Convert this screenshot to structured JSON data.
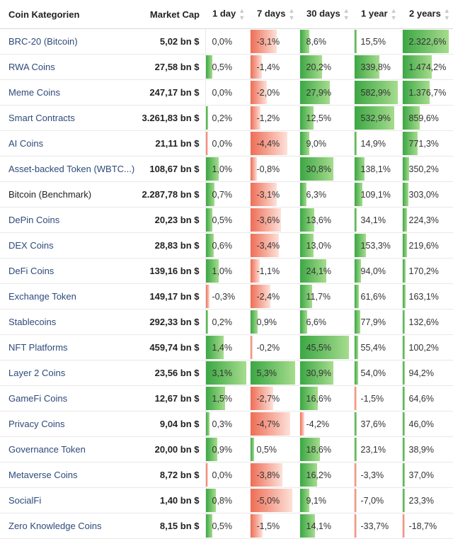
{
  "headers": {
    "category": "Coin Kategorien",
    "market_cap": "Market Cap",
    "d1": "1 day",
    "d7": "7 days",
    "d30": "30 days",
    "y1": "1 year",
    "y2": "2 years"
  },
  "sort_icon": "sort-updown-icon",
  "colors": {
    "positive": "#3ba743",
    "negative": "#ee6d55",
    "link": "#2e4a7a"
  },
  "rows": [
    {
      "name": "BRC-20 (Bitcoin)",
      "cap": "5,02 bn $",
      "d1": "0,0%",
      "d7": "-3,1%",
      "d30": "8,6%",
      "y1": "15,5%",
      "y2": "2.322,6%",
      "n": [
        0,
        -3.1,
        8.6,
        15.5,
        2322.6
      ]
    },
    {
      "name": "RWA Coins",
      "cap": "27,58 bn $",
      "d1": "0,5%",
      "d7": "-1,4%",
      "d30": "20,2%",
      "y1": "339,8%",
      "y2": "1.474,2%",
      "n": [
        0.5,
        -1.4,
        20.2,
        339.8,
        1474.2
      ]
    },
    {
      "name": "Meme Coins",
      "cap": "247,17 bn $",
      "d1": "0,0%",
      "d7": "-2,0%",
      "d30": "27,9%",
      "y1": "582,9%",
      "y2": "1.376,7%",
      "n": [
        0,
        -2.0,
        27.9,
        582.9,
        1376.7
      ]
    },
    {
      "name": "Smart Contracts",
      "cap": "3.261,83 bn $",
      "d1": "0,2%",
      "d7": "-1,2%",
      "d30": "12,5%",
      "y1": "532,9%",
      "y2": "859,6%",
      "n": [
        0.2,
        -1.2,
        12.5,
        532.9,
        859.6
      ]
    },
    {
      "name": "AI Coins",
      "cap": "21,11 bn $",
      "d1": "0,0%",
      "d7": "-4,4%",
      "d30": "9,0%",
      "y1": "14,9%",
      "y2": "771,3%",
      "n": [
        -0.05,
        -4.4,
        9.0,
        14.9,
        771.3
      ]
    },
    {
      "name": "Asset-backed Token (WBTC...)",
      "cap": "108,67 bn $",
      "d1": "1,0%",
      "d7": "-0,8%",
      "d30": "30,8%",
      "y1": "138,1%",
      "y2": "350,2%",
      "n": [
        1.0,
        -0.8,
        30.8,
        138.1,
        350.2
      ]
    },
    {
      "name": "Bitcoin (Benchmark)",
      "cap": "2.287,78 bn $",
      "d1": "0,7%",
      "d7": "-3,1%",
      "d30": "6,3%",
      "y1": "109,1%",
      "y2": "303,0%",
      "n": [
        0.7,
        -3.1,
        6.3,
        109.1,
        303.0
      ],
      "plain": true
    },
    {
      "name": "DePin Coins",
      "cap": "20,23 bn $",
      "d1": "0,5%",
      "d7": "-3,6%",
      "d30": "13,6%",
      "y1": "34,1%",
      "y2": "224,3%",
      "n": [
        0.5,
        -3.6,
        13.6,
        34.1,
        224.3
      ]
    },
    {
      "name": "DEX Coins",
      "cap": "28,83 bn $",
      "d1": "0,6%",
      "d7": "-3,4%",
      "d30": "13,0%",
      "y1": "153,3%",
      "y2": "219,6%",
      "n": [
        0.6,
        -3.4,
        13.0,
        153.3,
        219.6
      ]
    },
    {
      "name": "DeFi Coins",
      "cap": "139,16 bn $",
      "d1": "1,0%",
      "d7": "-1,1%",
      "d30": "24,1%",
      "y1": "94,0%",
      "y2": "170,2%",
      "n": [
        1.0,
        -1.1,
        24.1,
        94.0,
        170.2
      ]
    },
    {
      "name": "Exchange Token",
      "cap": "149,17 bn $",
      "d1": "-0,3%",
      "d7": "-2,4%",
      "d30": "11,7%",
      "y1": "61,6%",
      "y2": "163,1%",
      "n": [
        -0.3,
        -2.4,
        11.7,
        61.6,
        163.1
      ]
    },
    {
      "name": "Stablecoins",
      "cap": "292,33 bn $",
      "d1": "0,2%",
      "d7": "0,9%",
      "d30": "6,6%",
      "y1": "77,9%",
      "y2": "132,6%",
      "n": [
        0.2,
        0.9,
        6.6,
        77.9,
        132.6
      ]
    },
    {
      "name": "NFT Platforms",
      "cap": "459,74 bn $",
      "d1": "1,4%",
      "d7": "-0,2%",
      "d30": "45,5%",
      "y1": "55,4%",
      "y2": "100,2%",
      "n": [
        1.4,
        -0.2,
        45.5,
        55.4,
        100.2
      ]
    },
    {
      "name": "Layer 2 Coins",
      "cap": "23,56 bn $",
      "d1": "3,1%",
      "d7": "5,3%",
      "d30": "30,9%",
      "y1": "54,0%",
      "y2": "94,2%",
      "n": [
        3.1,
        5.3,
        30.9,
        54.0,
        94.2
      ]
    },
    {
      "name": "GameFi Coins",
      "cap": "12,67 bn $",
      "d1": "1,5%",
      "d7": "-2,7%",
      "d30": "16,6%",
      "y1": "-1,5%",
      "y2": "64,6%",
      "n": [
        1.5,
        -2.7,
        16.6,
        -1.5,
        64.6
      ]
    },
    {
      "name": "Privacy Coins",
      "cap": "9,04 bn $",
      "d1": "0,3%",
      "d7": "-4,7%",
      "d30": "-4,2%",
      "y1": "37,6%",
      "y2": "46,0%",
      "n": [
        0.3,
        -4.7,
        -4.2,
        37.6,
        46.0
      ]
    },
    {
      "name": "Governance Token",
      "cap": "20,00 bn $",
      "d1": "0,9%",
      "d7": "0,5%",
      "d30": "18,6%",
      "y1": "23,1%",
      "y2": "38,9%",
      "n": [
        0.9,
        0.5,
        18.6,
        23.1,
        38.9
      ]
    },
    {
      "name": "Metaverse Coins",
      "cap": "8,72 bn $",
      "d1": "0,0%",
      "d7": "-3,8%",
      "d30": "16,2%",
      "y1": "-3,3%",
      "y2": "37,0%",
      "n": [
        -0.05,
        -3.8,
        16.2,
        -3.3,
        37.0
      ]
    },
    {
      "name": "SocialFi",
      "cap": "1,40 bn $",
      "d1": "0,8%",
      "d7": "-5,0%",
      "d30": "9,1%",
      "y1": "-7,0%",
      "y2": "23,3%",
      "n": [
        0.8,
        -5.0,
        9.1,
        -7.0,
        23.3
      ]
    },
    {
      "name": "Zero Knowledge Coins",
      "cap": "8,15 bn $",
      "d1": "0,5%",
      "d7": "-1,5%",
      "d30": "14,1%",
      "y1": "-33,7%",
      "y2": "-18,7%",
      "n": [
        0.5,
        -1.5,
        14.1,
        -33.7,
        -18.7
      ]
    }
  ]
}
